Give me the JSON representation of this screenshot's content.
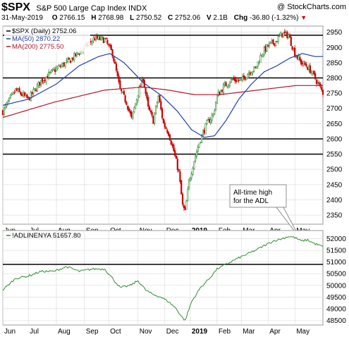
{
  "header": {
    "symbol": "$SPX",
    "name": "S&P 500 Large Cap Index INDX",
    "watermark": "@ StockCharts.com",
    "date": "31-May-2019",
    "quote": {
      "o_label": "O",
      "o": "2766.15",
      "h_label": "H",
      "h": "2768.98",
      "l_label": "L",
      "l": "2750.52",
      "c_label": "C",
      "c": "2752.06",
      "v_label": "V",
      "v": "2.1B",
      "chg_label": "Chg",
      "chg": "-36.80 (-1.32%)"
    }
  },
  "colors": {
    "up_candle": "#2e8b2e",
    "down_candle": "#cc0000",
    "ma50": "#1f3fa6",
    "ma200": "#b0182a",
    "adl": "#2f8f2f",
    "grid": "#d8d8d8",
    "hline": "#000000"
  },
  "chart_data": [
    {
      "type": "candlestick",
      "legend": [
        {
          "label": "$SPX (Daily) 2752.06",
          "color": "#000000"
        },
        {
          "label": "MA(50) 2870.22",
          "color": "#1f3fa6"
        },
        {
          "label": "MA(200) 2775.50",
          "color": "#b0182a"
        }
      ],
      "x_ticks": [
        "Jun",
        "Jul",
        "Aug",
        "Sep",
        "Oct",
        "Nov",
        "Dec",
        "2019",
        "Feb",
        "Mar",
        "Apr",
        "May"
      ],
      "x_tick_pos": [
        0,
        20,
        42,
        64,
        83,
        106,
        127,
        147,
        168,
        187,
        208,
        229
      ],
      "n_days": 252,
      "ylim": [
        2320,
        2970
      ],
      "y_ticks": [
        2350,
        2400,
        2450,
        2500,
        2550,
        2600,
        2650,
        2700,
        2750,
        2800,
        2850,
        2900,
        2950
      ],
      "horizontal_lines": [
        2940,
        2800,
        2600,
        2550
      ],
      "close_anchors": [
        [
          0,
          2690
        ],
        [
          10,
          2760
        ],
        [
          20,
          2730
        ],
        [
          30,
          2790
        ],
        [
          42,
          2830
        ],
        [
          52,
          2855
        ],
        [
          64,
          2900
        ],
        [
          72,
          2930
        ],
        [
          80,
          2925
        ],
        [
          86,
          2880
        ],
        [
          92,
          2760
        ],
        [
          97,
          2720
        ],
        [
          101,
          2665
        ],
        [
          106,
          2750
        ],
        [
          110,
          2800
        ],
        [
          114,
          2700
        ],
        [
          118,
          2660
        ],
        [
          122,
          2740
        ],
        [
          126,
          2650
        ],
        [
          130,
          2620
        ],
        [
          134,
          2560
        ],
        [
          138,
          2490
        ],
        [
          141,
          2380
        ],
        [
          143,
          2360
        ],
        [
          146,
          2460
        ],
        [
          150,
          2530
        ],
        [
          155,
          2600
        ],
        [
          160,
          2650
        ],
        [
          165,
          2680
        ],
        [
          168,
          2740
        ],
        [
          174,
          2775
        ],
        [
          180,
          2795
        ],
        [
          187,
          2790
        ],
        [
          193,
          2820
        ],
        [
          198,
          2830
        ],
        [
          203,
          2880
        ],
        [
          208,
          2905
        ],
        [
          214,
          2920
        ],
        [
          219,
          2945
        ],
        [
          224,
          2940
        ],
        [
          229,
          2880
        ],
        [
          234,
          2850
        ],
        [
          238,
          2840
        ],
        [
          242,
          2820
        ],
        [
          246,
          2790
        ],
        [
          251,
          2752
        ]
      ],
      "ma50_points": [
        [
          0,
          2710
        ],
        [
          20,
          2730
        ],
        [
          42,
          2780
        ],
        [
          60,
          2840
        ],
        [
          75,
          2870
        ],
        [
          84,
          2880
        ],
        [
          95,
          2850
        ],
        [
          110,
          2785
        ],
        [
          125,
          2740
        ],
        [
          137,
          2690
        ],
        [
          148,
          2630
        ],
        [
          158,
          2605
        ],
        [
          166,
          2610
        ],
        [
          175,
          2660
        ],
        [
          185,
          2730
        ],
        [
          195,
          2780
        ],
        [
          205,
          2820
        ],
        [
          215,
          2840
        ],
        [
          225,
          2865
        ],
        [
          235,
          2880
        ],
        [
          245,
          2870
        ],
        [
          251,
          2870
        ]
      ],
      "ma200_points": [
        [
          0,
          2670
        ],
        [
          40,
          2720
        ],
        [
          80,
          2760
        ],
        [
          110,
          2770
        ],
        [
          130,
          2760
        ],
        [
          150,
          2745
        ],
        [
          170,
          2745
        ],
        [
          190,
          2755
        ],
        [
          210,
          2765
        ],
        [
          230,
          2775
        ],
        [
          251,
          2775
        ]
      ],
      "annotation": {
        "text": [
          "All-time high",
          "for the ADL"
        ],
        "day": 233
      }
    },
    {
      "type": "line",
      "legend": [
        {
          "label": "!ADLINENYA 51657.80",
          "color": "#2f8f2f"
        }
      ],
      "ylim": [
        48300,
        52350
      ],
      "y_ticks": [
        48500,
        49000,
        49500,
        50000,
        50500,
        51000,
        51500,
        52000
      ],
      "horizontal_lines": [
        50900
      ],
      "points": [
        [
          0,
          49800
        ],
        [
          10,
          50300
        ],
        [
          20,
          50400
        ],
        [
          30,
          50600
        ],
        [
          40,
          50600
        ],
        [
          50,
          50800
        ],
        [
          60,
          50600
        ],
        [
          70,
          50700
        ],
        [
          80,
          50700
        ],
        [
          86,
          50300
        ],
        [
          92,
          49900
        ],
        [
          100,
          50000
        ],
        [
          106,
          50200
        ],
        [
          112,
          49800
        ],
        [
          118,
          49600
        ],
        [
          124,
          49500
        ],
        [
          130,
          49300
        ],
        [
          136,
          49000
        ],
        [
          141,
          48600
        ],
        [
          143,
          48500
        ],
        [
          148,
          49300
        ],
        [
          155,
          49900
        ],
        [
          162,
          50300
        ],
        [
          168,
          50700
        ],
        [
          175,
          50900
        ],
        [
          182,
          51100
        ],
        [
          190,
          51300
        ],
        [
          198,
          51500
        ],
        [
          205,
          51700
        ],
        [
          212,
          51900
        ],
        [
          219,
          52000
        ],
        [
          224,
          52100
        ],
        [
          229,
          52050
        ],
        [
          234,
          51900
        ],
        [
          239,
          51950
        ],
        [
          244,
          51800
        ],
        [
          251,
          51658
        ]
      ]
    }
  ]
}
